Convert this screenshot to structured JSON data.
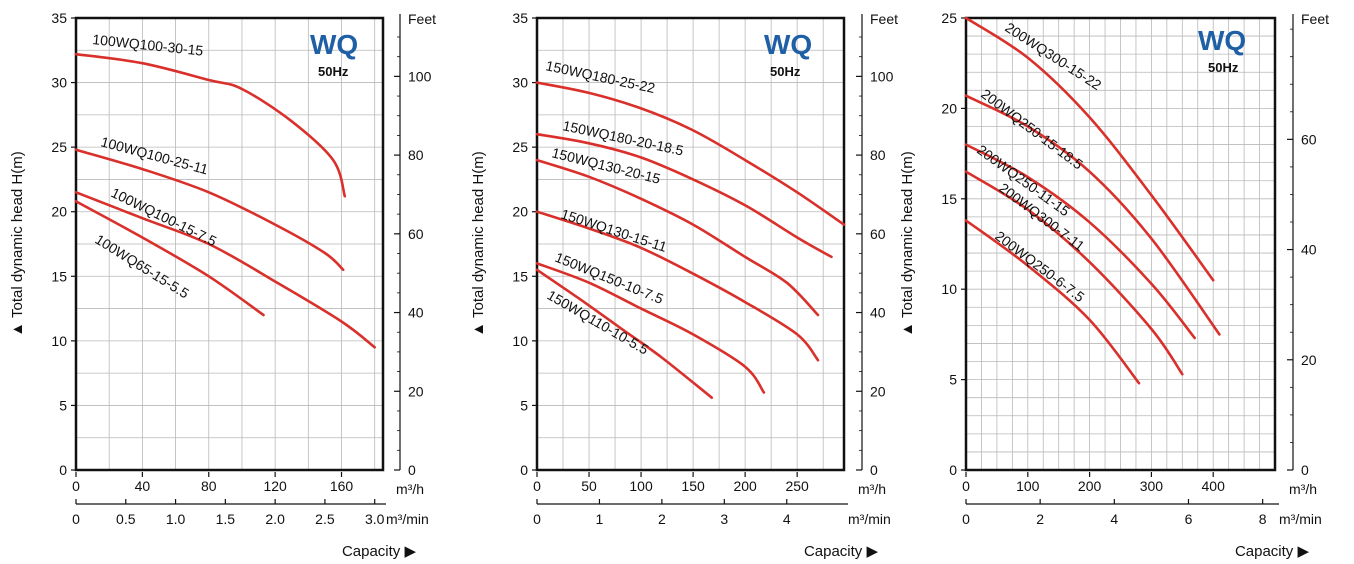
{
  "chart_data": [
    {
      "type": "line",
      "brand": "WQ",
      "frequency": "50Hz",
      "ylabel": "Total dynamic head H(m)",
      "y2label": "Feet",
      "xlabel": "Capacity",
      "x_unit_primary": "m³/h",
      "x_unit_secondary": "m³/min",
      "ylim": [
        0,
        35
      ],
      "xlim_m3h": [
        0,
        185
      ],
      "y_ticks": [
        "0",
        "5",
        "10",
        "15",
        "20",
        "25",
        "30",
        "35"
      ],
      "x_ticks_m3h": [
        "0",
        "40",
        "80",
        "120",
        "160"
      ],
      "x_ticks_m3min": [
        "0",
        "0.5",
        "1.0",
        "1.5",
        "2.0",
        "2.5",
        "3.0"
      ],
      "y2_ticks": [
        "0",
        "20",
        "40",
        "60",
        "80",
        "100"
      ],
      "grid": true,
      "series": [
        {
          "name": "100WQ100-30-15",
          "x": [
            0,
            40,
            80,
            100,
            130,
            155,
            162
          ],
          "y": [
            32.2,
            31.5,
            30.2,
            29.5,
            27,
            24,
            21.2
          ]
        },
        {
          "name": "100WQ100-25-11",
          "x": [
            0,
            40,
            80,
            120,
            150,
            161
          ],
          "y": [
            24.8,
            23.3,
            21.5,
            19,
            16.8,
            15.5
          ]
        },
        {
          "name": "100WQ100-15-7.5",
          "x": [
            0,
            40,
            80,
            120,
            160,
            180
          ],
          "y": [
            21.5,
            19.5,
            17.5,
            14.6,
            11.5,
            9.5
          ]
        },
        {
          "name": "100WQ65-15-5.5",
          "x": [
            0,
            40,
            80,
            113
          ],
          "y": [
            20.8,
            18,
            15,
            12
          ]
        }
      ]
    },
    {
      "type": "line",
      "brand": "WQ",
      "frequency": "50Hz",
      "ylabel": "Total dynamic head H(m)",
      "y2label": "Feet",
      "xlabel": "Capacity",
      "x_unit_primary": "m³/h",
      "x_unit_secondary": "m³/min",
      "ylim": [
        0,
        35
      ],
      "xlim_m3h": [
        0,
        295
      ],
      "y_ticks": [
        "0",
        "5",
        "10",
        "15",
        "20",
        "25",
        "30",
        "35"
      ],
      "x_ticks_m3h": [
        "0",
        "50",
        "100",
        "150",
        "200",
        "250"
      ],
      "x_ticks_m3min": [
        "0",
        "1",
        "2",
        "3",
        "4"
      ],
      "y2_ticks": [
        "0",
        "20",
        "40",
        "60",
        "80",
        "100"
      ],
      "grid": true,
      "series": [
        {
          "name": "150WQ180-25-22",
          "x": [
            0,
            50,
            100,
            150,
            200,
            250,
            295
          ],
          "y": [
            30,
            29.2,
            28,
            26.3,
            24,
            21.5,
            19
          ]
        },
        {
          "name": "150WQ180-20-18.5",
          "x": [
            0,
            50,
            100,
            150,
            200,
            250,
            283
          ],
          "y": [
            26,
            25.3,
            24.2,
            22.5,
            20.5,
            18,
            16.5
          ]
        },
        {
          "name": "150WQ130-20-15",
          "x": [
            0,
            50,
            100,
            150,
            200,
            240,
            270
          ],
          "y": [
            24,
            22.7,
            21,
            19,
            16.5,
            14.5,
            12
          ]
        },
        {
          "name": "150WQ130-15-11",
          "x": [
            0,
            50,
            100,
            150,
            200,
            250,
            270
          ],
          "y": [
            20,
            18.7,
            17.2,
            15.2,
            13,
            10.5,
            8.5
          ]
        },
        {
          "name": "150WQ150-10-7.5",
          "x": [
            0,
            50,
            100,
            150,
            200,
            218
          ],
          "y": [
            16,
            14.5,
            12.5,
            10.5,
            8,
            6
          ]
        },
        {
          "name": "150WQ110-10-5.5",
          "x": [
            0,
            40,
            80,
            120,
            168
          ],
          "y": [
            15.5,
            13.3,
            11,
            8.7,
            5.6
          ]
        }
      ]
    },
    {
      "type": "line",
      "brand": "WQ",
      "frequency": "50Hz",
      "ylabel": "Total dynamic head H(m)",
      "y2label": "Feet",
      "xlabel": "Capacity",
      "x_unit_primary": "m³/h",
      "x_unit_secondary": "m³/min",
      "ylim": [
        0,
        25
      ],
      "xlim_m3h": [
        0,
        500
      ],
      "y_ticks": [
        "0",
        "5",
        "10",
        "15",
        "20",
        "25"
      ],
      "x_ticks_m3h": [
        "0",
        "100",
        "200",
        "300",
        "400"
      ],
      "x_ticks_m3min": [
        "0",
        "2",
        "4",
        "6",
        "8"
      ],
      "y2_ticks": [
        "0",
        "20",
        "40",
        "60"
      ],
      "grid": true,
      "series": [
        {
          "name": "200WQ300-15-22",
          "x": [
            0,
            100,
            200,
            300,
            400
          ],
          "y": [
            25,
            22.8,
            19.5,
            15.2,
            10.5
          ]
        },
        {
          "name": "200WQ250-15-18.5",
          "x": [
            0,
            100,
            200,
            300,
            410
          ],
          "y": [
            20.7,
            19,
            16.5,
            12.8,
            7.5
          ]
        },
        {
          "name": "200WQ250-11-15",
          "x": [
            0,
            100,
            200,
            300,
            370
          ],
          "y": [
            18,
            16.2,
            13.7,
            10.3,
            7.3
          ]
        },
        {
          "name": "200WQ300-7-11",
          "x": [
            0,
            100,
            200,
            300,
            350
          ],
          "y": [
            16.5,
            14.4,
            11.5,
            7.8,
            5.3
          ]
        },
        {
          "name": "200WQ250-6-7.5",
          "x": [
            0,
            100,
            200,
            280
          ],
          "y": [
            13.8,
            11.3,
            8.3,
            4.8
          ]
        }
      ]
    }
  ]
}
